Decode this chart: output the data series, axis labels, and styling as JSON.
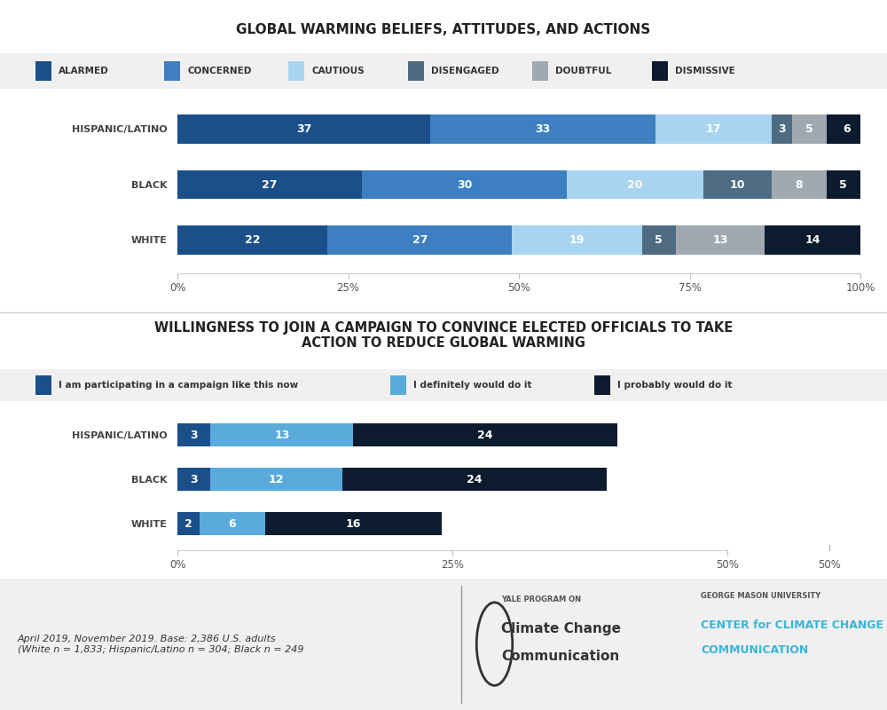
{
  "title1": "GLOBAL WARMING BELIEFS, ATTITUDES, AND ACTIONS",
  "title2": "WILLINGNESS TO JOIN A CAMPAIGN TO CONVINCE ELECTED OFFICIALS TO TAKE\nACTION TO REDUCE GLOBAL WARMING",
  "chart1": {
    "categories": [
      "HISPANIC/LATINO",
      "BLACK",
      "WHITE"
    ],
    "segments": [
      {
        "label": "ALARMED",
        "color": "#1a4f8a",
        "values": [
          37,
          27,
          22
        ]
      },
      {
        "label": "CONCERNED",
        "color": "#3d7fc1",
        "values": [
          33,
          30,
          27
        ]
      },
      {
        "label": "CAUTIOUS",
        "color": "#a8d4ef",
        "values": [
          17,
          20,
          19
        ]
      },
      {
        "label": "DISENGAGED",
        "color": "#4d6b82",
        "values": [
          3,
          10,
          5
        ]
      },
      {
        "label": "DOUBTFUL",
        "color": "#a0a8b0",
        "values": [
          5,
          8,
          13
        ]
      },
      {
        "label": "DISMISSIVE",
        "color": "#0d1b2e",
        "values": [
          6,
          5,
          14
        ]
      }
    ],
    "xlim": [
      0,
      100
    ],
    "xticks": [
      0,
      25,
      50,
      75,
      100
    ],
    "xticklabels": [
      "0%",
      "25%",
      "50%",
      "75%",
      "100%"
    ]
  },
  "chart2": {
    "categories": [
      "HISPANIC/LATINO",
      "BLACK",
      "WHITE"
    ],
    "segments": [
      {
        "label": "I am participating in a campaign like this now",
        "color": "#1a4f8a",
        "values": [
          3,
          3,
          2
        ]
      },
      {
        "label": "I definitely would do it",
        "color": "#5aabdc",
        "values": [
          13,
          12,
          6
        ]
      },
      {
        "label": "I probably would do it",
        "color": "#0d1b2e",
        "values": [
          24,
          24,
          16
        ]
      }
    ],
    "xlim": [
      0,
      50
    ],
    "xticks": [
      0,
      25,
      50
    ],
    "xticklabels": [
      "0%",
      "25%",
      "50%"
    ]
  },
  "footer_text": "April 2019, November 2019. Base: 2,386 U.S. adults\n(White n = 1,833; Hispanic/Latino n = 304; Black n = 249",
  "bg_color": "#f0f0f0",
  "white": "#ffffff"
}
